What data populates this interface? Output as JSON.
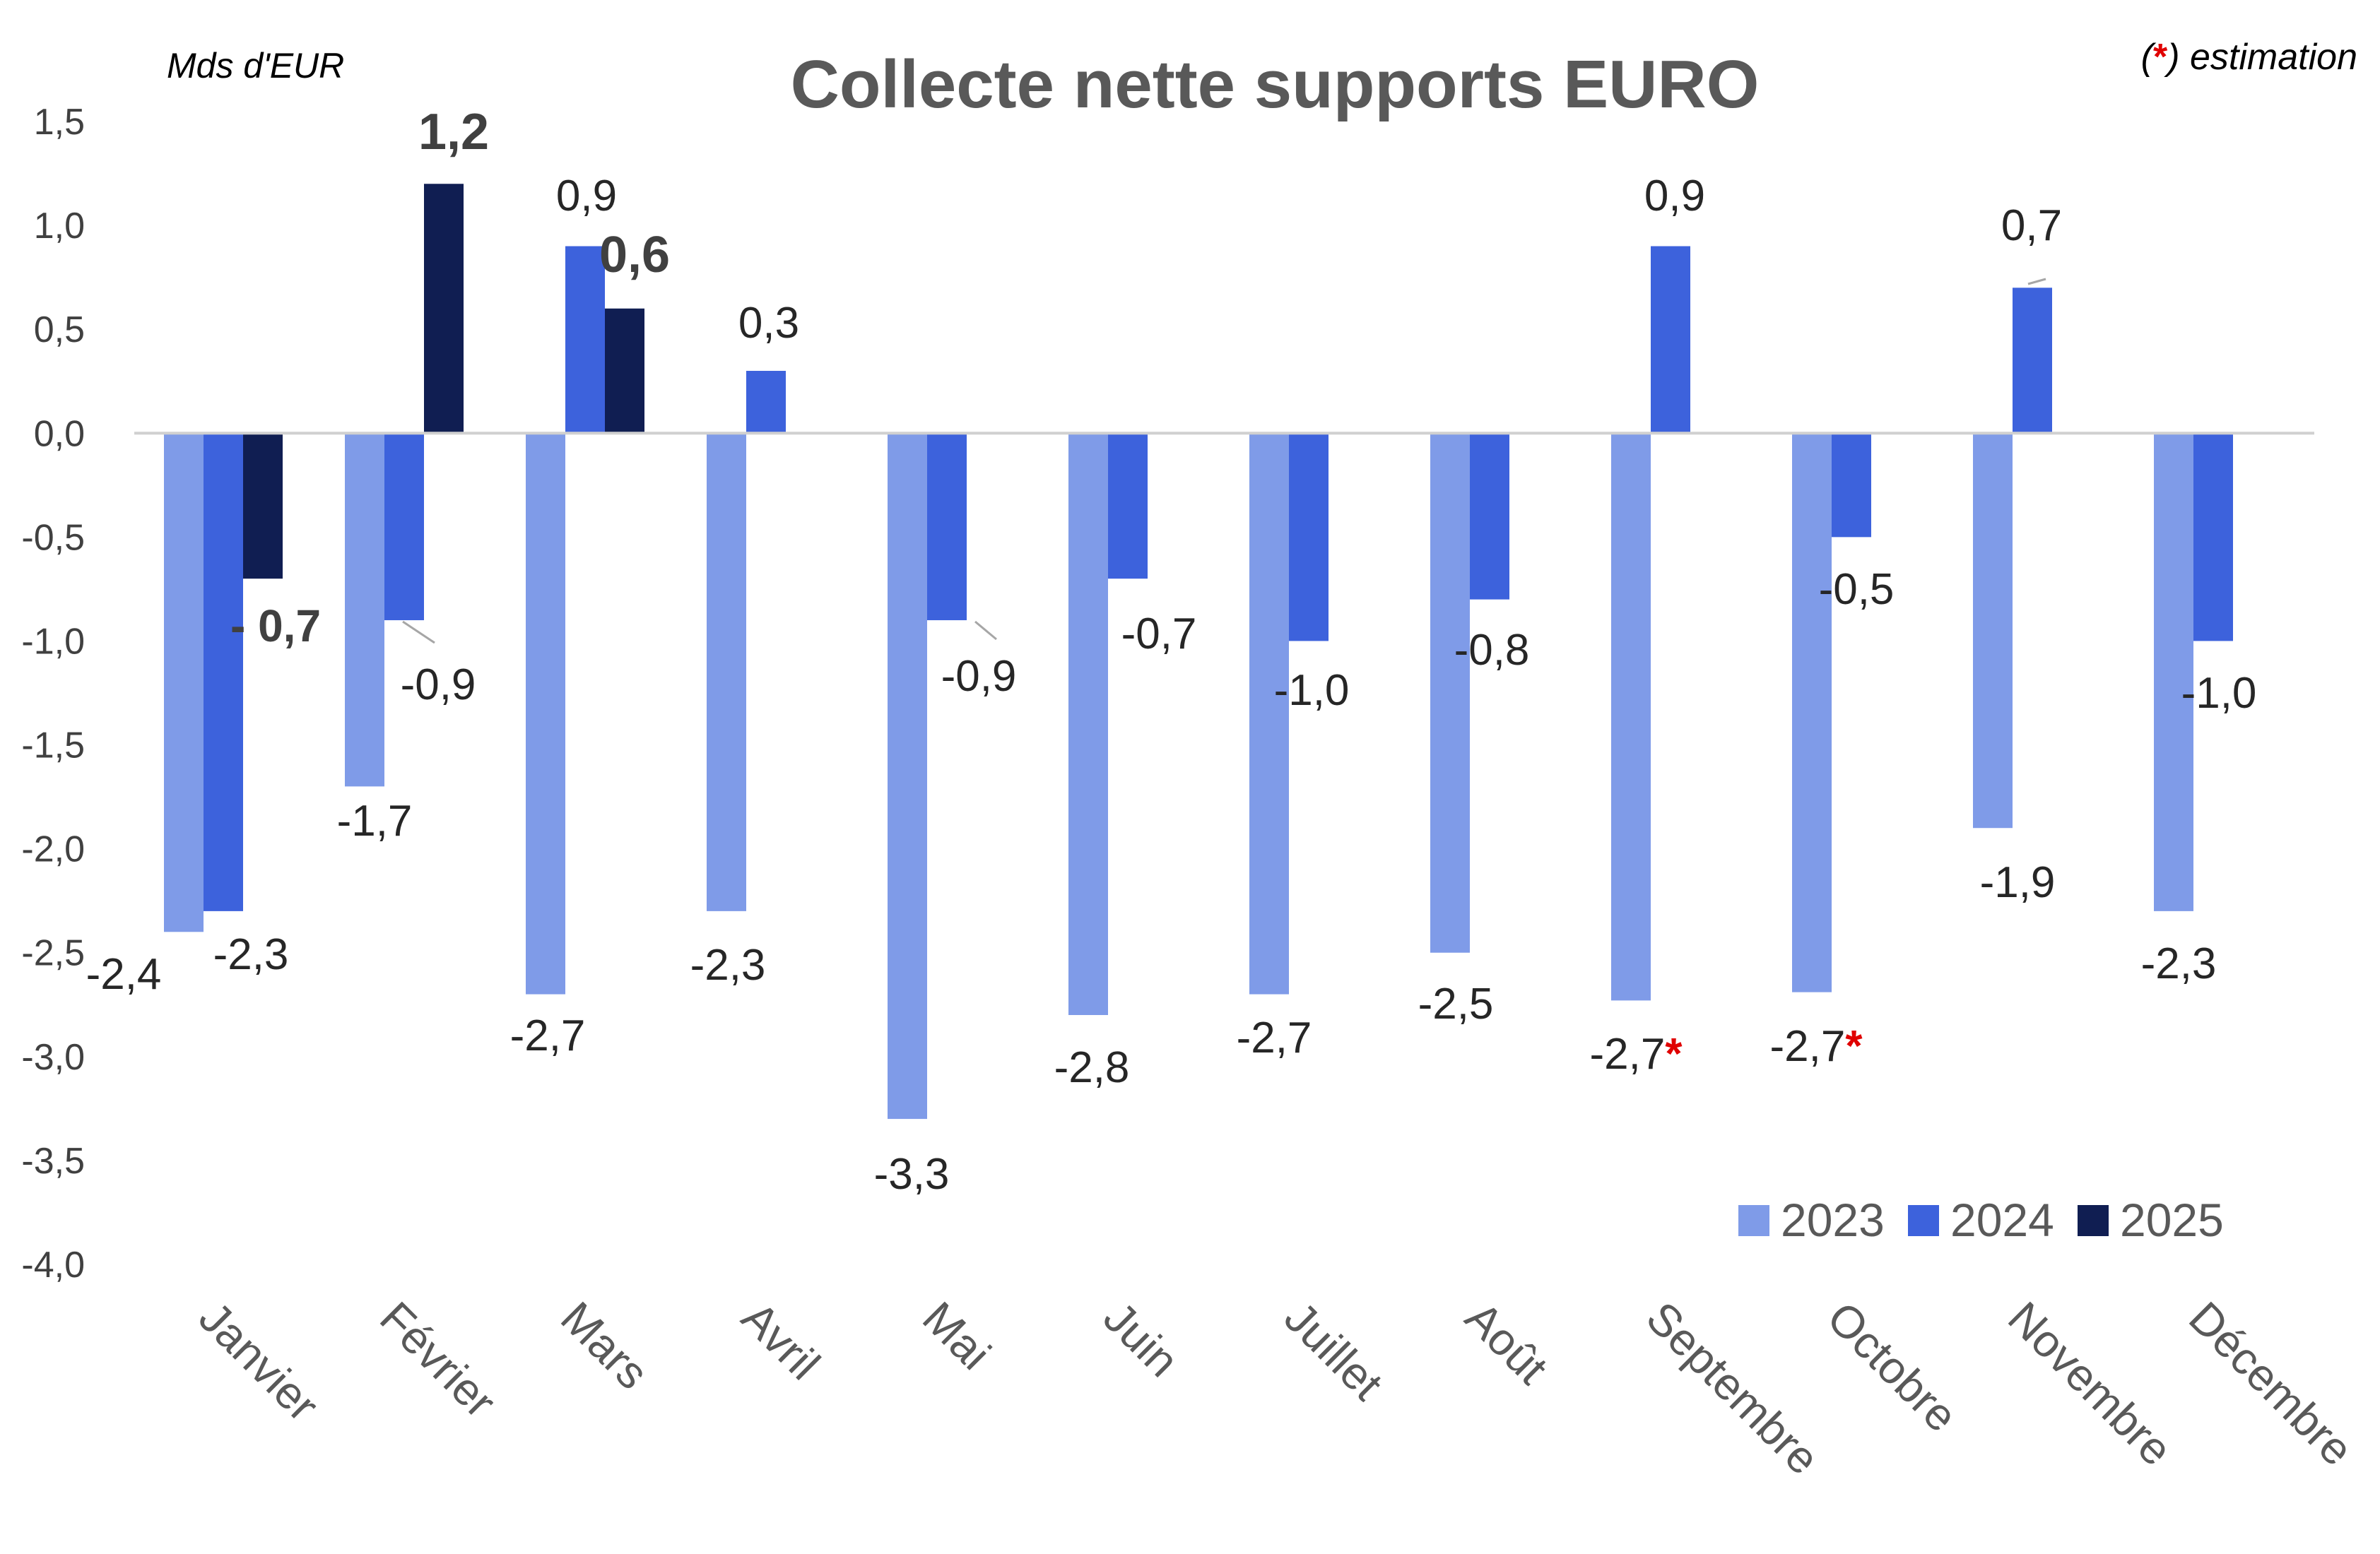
{
  "chart_data": {
    "type": "bar",
    "title": "Collecte nette supports EURO",
    "ylabel": "Mds d'EUR",
    "note": "(*) estimation",
    "note_parts": {
      "open": "(",
      "star": "*",
      "rest": ") estimation"
    },
    "ylim": [
      -4.0,
      1.5
    ],
    "ytick_step": 0.5,
    "yticks": [
      "1,5",
      "1,0",
      "0,5",
      "0,0",
      "-0,5",
      "-1,0",
      "-1,5",
      "-2,0",
      "-2,5",
      "-3,0",
      "-3,5",
      "-4,0"
    ],
    "categories": [
      "Janvier",
      "Février",
      "Mars",
      "Avril",
      "Mai",
      "Juin",
      "Juillet",
      "Août",
      "Septembre",
      "Octobre",
      "Novembre",
      "Décembre"
    ],
    "legend_position": "bottom-right",
    "grid": false,
    "series": [
      {
        "name": "2023",
        "color": "#7f9be8",
        "values": [
          -2.4,
          -1.7,
          -2.7,
          -2.3,
          -3.3,
          -2.8,
          -2.7,
          -2.5,
          -2.73,
          -2.69,
          -1.9,
          -2.3
        ],
        "labels": [
          "-2,4",
          "-1,7",
          "-2,7",
          "-2,3",
          "-3,3",
          "-2,8",
          "-2,7",
          "-2,5",
          "-2,7",
          "-2,7",
          "-1,9",
          "-2,3"
        ],
        "estimated": [
          false,
          false,
          false,
          false,
          false,
          false,
          false,
          false,
          true,
          true,
          false,
          false
        ]
      },
      {
        "name": "2024",
        "color": "#3d62dc",
        "values": [
          -2.3,
          -0.9,
          0.9,
          0.3,
          -0.9,
          -0.7,
          -1.0,
          -0.8,
          0.9,
          -0.5,
          0.7,
          -1.0
        ],
        "labels": [
          "-2,3",
          "-0,9",
          "0,9",
          "0,3",
          "-0,9",
          "-0,7",
          "-1,0",
          "-0,8",
          "0,9",
          "-0,5",
          "0,7",
          "-1,0"
        ]
      },
      {
        "name": "2025",
        "color": "#101e52",
        "values": [
          -0.7,
          1.2,
          0.6,
          null,
          null,
          null,
          null,
          null,
          null,
          null,
          null,
          null
        ],
        "labels": [
          "- 0,7",
          "1,2",
          "0,6",
          null,
          null,
          null,
          null,
          null,
          null,
          null,
          null,
          null
        ]
      }
    ]
  }
}
